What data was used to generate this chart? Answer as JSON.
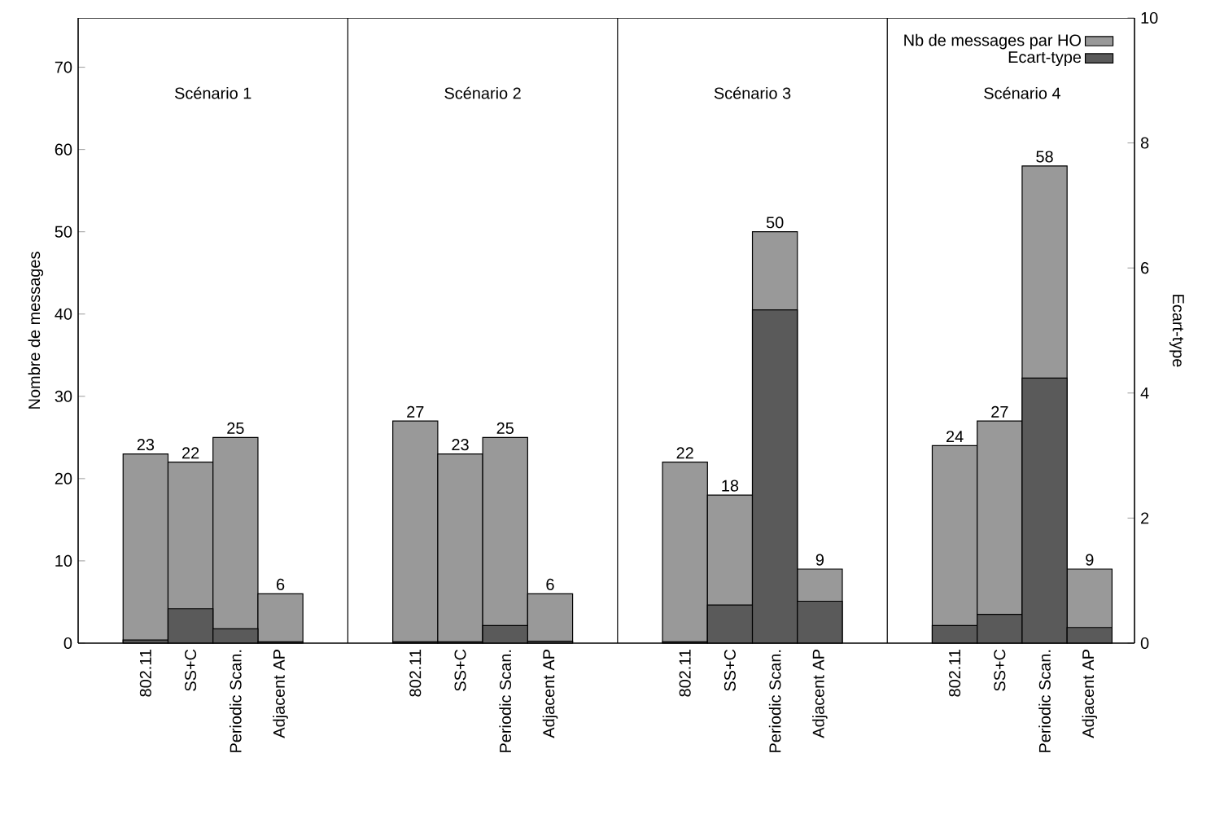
{
  "chart_data": {
    "type": "bar",
    "ylabel": "Nombre de messages",
    "y2label": "Ecart-type",
    "categories": [
      "802.11",
      "SS+C",
      "Periodic Scan.",
      "Adjacent AP",
      null,
      null,
      "802.11",
      "SS+C",
      "Periodic Scan.",
      "Adjacent AP",
      null,
      null,
      "802.11",
      "SS+C",
      "Periodic Scan.",
      "Adjacent AP",
      null,
      null,
      "802.11",
      "SS+C",
      "Periodic Scan.",
      "Adjacent AP"
    ],
    "series": [
      {
        "name": "Nb de messages par HO",
        "color": "#999999",
        "values": [
          23,
          22,
          25,
          6,
          null,
          null,
          27,
          23,
          25,
          6,
          null,
          null,
          22,
          18,
          50,
          9,
          null,
          null,
          24,
          27,
          58,
          9
        ],
        "value_labels": [
          "23",
          "22",
          "25",
          "6",
          null,
          null,
          "27",
          "23",
          "25",
          "6",
          null,
          null,
          "22",
          "18",
          "50",
          "9",
          null,
          null,
          "24",
          "27",
          "58",
          "9"
        ]
      },
      {
        "name": "Ecart-type",
        "color": "#5a5a5a",
        "axis": "y2",
        "values": [
          0.05,
          0.55,
          0.23,
          0.02,
          null,
          null,
          0.02,
          0.02,
          0.28,
          0.03,
          null,
          null,
          0.02,
          0.61,
          5.33,
          0.67,
          null,
          null,
          0.28,
          0.46,
          4.24,
          0.25
        ]
      }
    ],
    "ylim": [
      0,
      76
    ],
    "yticks": [
      0,
      10,
      20,
      30,
      40,
      50,
      60,
      70
    ],
    "y2lim": [
      0,
      10
    ],
    "y2ticks": [
      0,
      2,
      4,
      6,
      8,
      10
    ],
    "annotations": [
      "Scénario 1",
      "Scénario 2",
      "Scénario 3",
      "Scénario 4"
    ],
    "legend": "top right",
    "grid": false
  }
}
